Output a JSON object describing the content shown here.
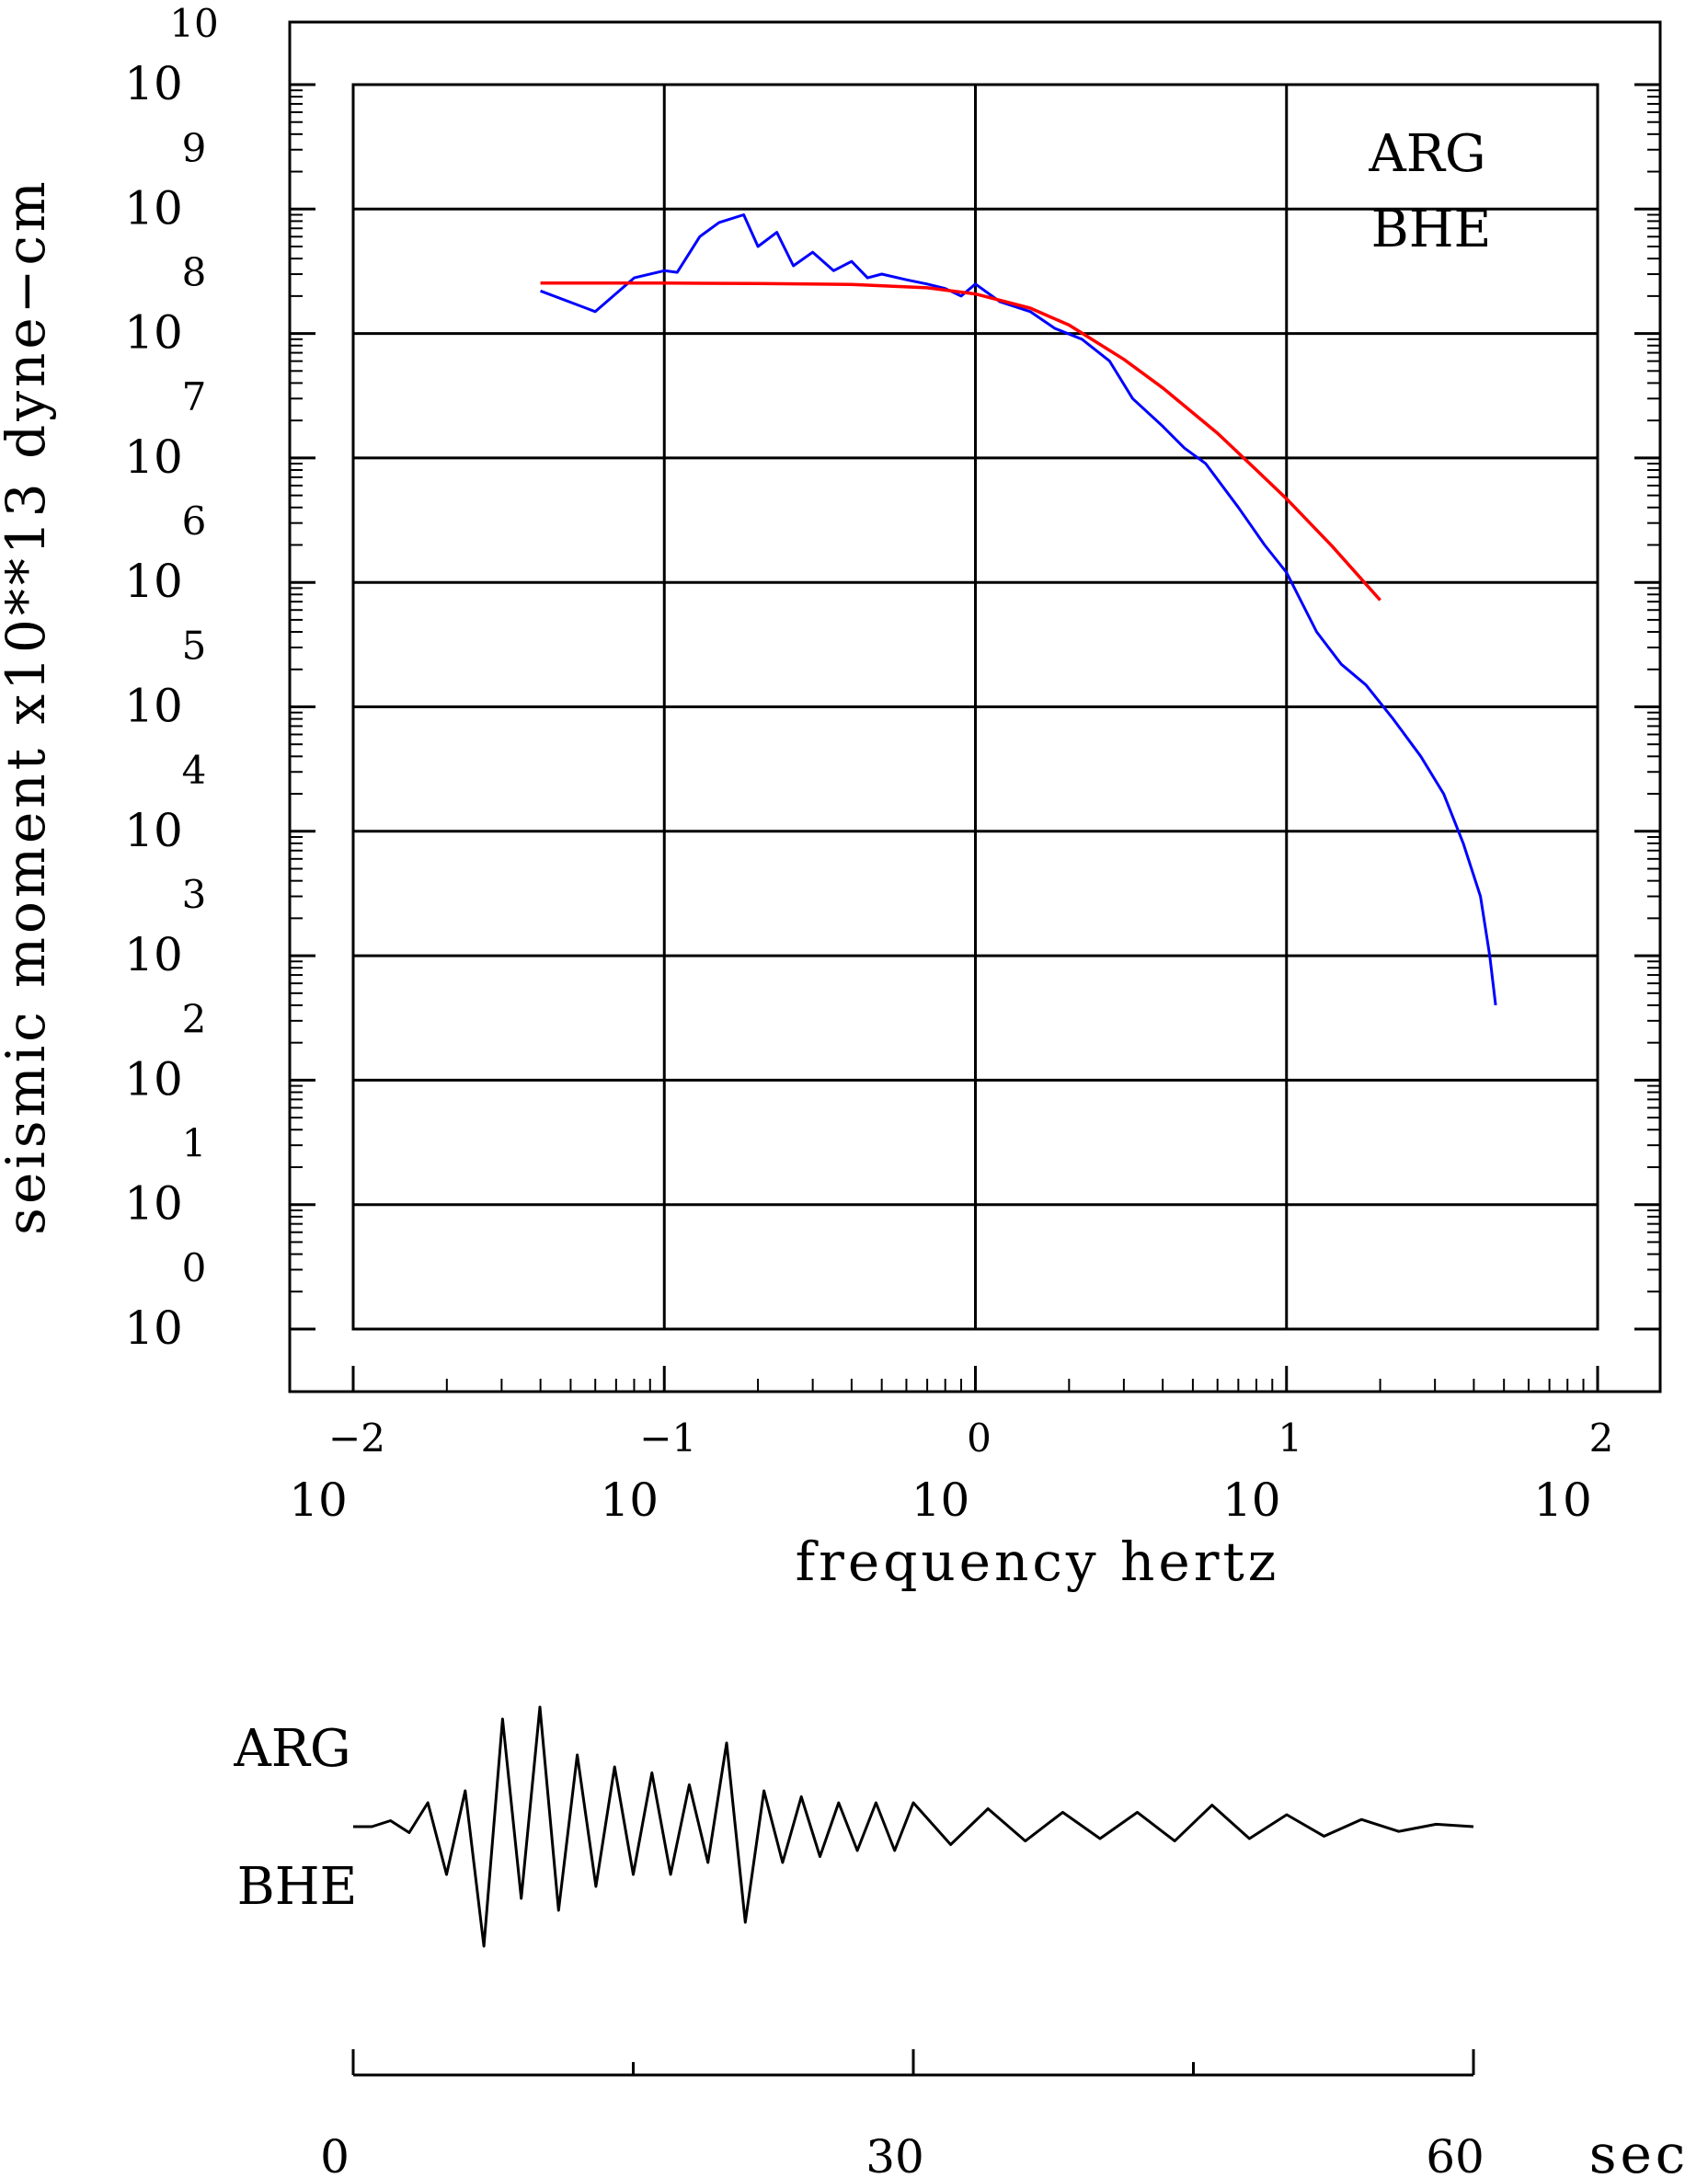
{
  "chart_data": [
    {
      "type": "line",
      "title": "",
      "xlabel": "frequency  hertz",
      "ylabel": "seismic moment x10**13 dyne−cm",
      "x_scale": "log",
      "y_scale": "log",
      "xlim": [
        0.01,
        100
      ],
      "ylim": [
        1,
        10000000000
      ],
      "grid": true,
      "x_ticks": [
        {
          "base": "10",
          "exp": "−2"
        },
        {
          "base": "10",
          "exp": "−1"
        },
        {
          "base": "10",
          "exp": "0"
        },
        {
          "base": "10",
          "exp": "1"
        },
        {
          "base": "10",
          "exp": "2"
        }
      ],
      "y_ticks": [
        {
          "base": "10",
          "exp": "0"
        },
        {
          "base": "10",
          "exp": "1"
        },
        {
          "base": "10",
          "exp": "2"
        },
        {
          "base": "10",
          "exp": "3"
        },
        {
          "base": "10",
          "exp": "4"
        },
        {
          "base": "10",
          "exp": "5"
        },
        {
          "base": "10",
          "exp": "6"
        },
        {
          "base": "10",
          "exp": "7"
        },
        {
          "base": "10",
          "exp": "8"
        },
        {
          "base": "10",
          "exp": "9"
        },
        {
          "base": "10",
          "exp": "10"
        }
      ],
      "annotations": [
        "ARG",
        "BHE"
      ],
      "series": [
        {
          "color": "#0000ff",
          "x": [
            0.04,
            0.06,
            0.08,
            0.1,
            0.11,
            0.13,
            0.15,
            0.18,
            0.2,
            0.23,
            0.26,
            0.3,
            0.35,
            0.4,
            0.45,
            0.5,
            0.6,
            0.7,
            0.8,
            0.9,
            1.0,
            1.2,
            1.5,
            1.8,
            2.2,
            2.7,
            3.2,
            4.0,
            4.7,
            5.5,
            7.0,
            8.5,
            10.0,
            12.5,
            15.0,
            18.0,
            22.0,
            27.0,
            32.0,
            37.0,
            42.0,
            45.0,
            47.0
          ],
          "y": [
            220000000,
            150000000,
            280000000,
            320000000,
            310000000,
            600000000,
            780000000,
            900000000,
            500000000,
            650000000,
            350000000,
            450000000,
            320000000,
            380000000,
            280000000,
            300000000,
            270000000,
            250000000,
            230000000,
            200000000,
            250000000,
            180000000,
            150000000,
            110000000,
            90000000,
            60000000,
            30000000,
            18000000,
            12000000,
            9000000,
            4000000,
            2000000,
            1200000,
            400000,
            220000,
            150000,
            80000,
            40000,
            20000,
            8000,
            3000,
            1000,
            400
          ]
        },
        {
          "color": "#ff0000",
          "x": [
            0.04,
            0.1,
            0.2,
            0.4,
            0.7,
            1.0,
            1.5,
            2.0,
            3.0,
            4.0,
            6.0,
            8.0,
            10.0,
            14.0,
            20.0
          ],
          "y": [
            254000000,
            254000000,
            252000000,
            248000000,
            233000000,
            208000000,
            160000000,
            117000000,
            62000000,
            36600000,
            15800000,
            8000000,
            4700000,
            1960000,
            720000
          ]
        }
      ]
    },
    {
      "type": "line",
      "title": "",
      "xlabel": "sec",
      "xlim": [
        0,
        60
      ],
      "x_ticks": [
        "0",
        "30",
        "60"
      ],
      "annotations": [
        "ARG",
        "BHE"
      ],
      "series": [
        {
          "color": "#000000",
          "x": [
            0,
            1,
            2,
            3,
            4,
            5,
            6,
            7,
            8,
            9,
            10,
            11,
            12,
            13,
            14,
            15,
            16,
            17,
            18,
            19,
            20,
            21,
            22,
            23,
            24,
            25,
            26,
            27,
            28,
            29,
            30,
            32,
            34,
            36,
            38,
            40,
            42,
            44,
            46,
            48,
            50,
            52,
            54,
            56,
            58,
            60
          ],
          "y": [
            0.0,
            0.0,
            0.05,
            -0.05,
            0.2,
            -0.4,
            0.3,
            -1.0,
            0.9,
            -0.6,
            1.0,
            -0.7,
            0.6,
            -0.5,
            0.5,
            -0.4,
            0.45,
            -0.4,
            0.35,
            -0.3,
            0.7,
            -0.8,
            0.3,
            -0.3,
            0.25,
            -0.25,
            0.2,
            -0.2,
            0.2,
            -0.2,
            0.2,
            -0.15,
            0.15,
            -0.12,
            0.12,
            -0.1,
            0.12,
            -0.12,
            0.18,
            -0.1,
            0.1,
            -0.08,
            0.06,
            -0.04,
            0.02,
            0.0
          ]
        }
      ]
    }
  ]
}
